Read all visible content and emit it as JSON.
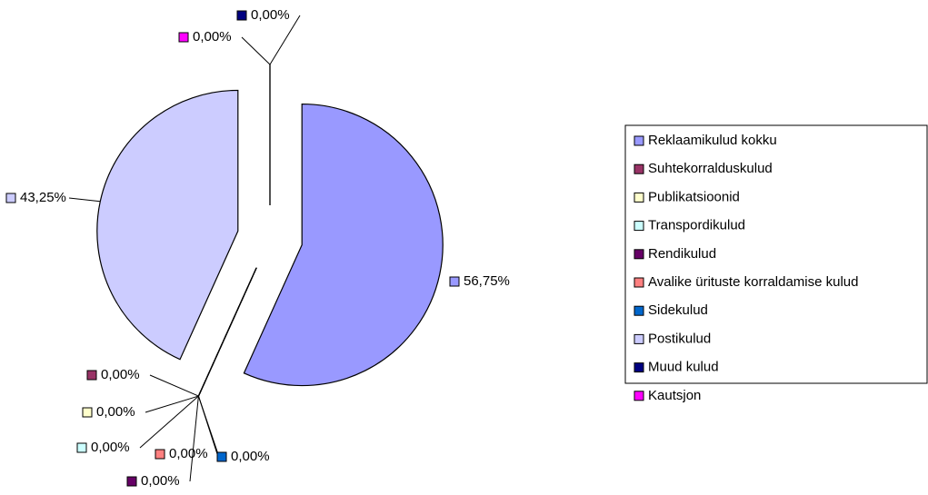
{
  "chart_data": {
    "type": "pie",
    "categories": [
      "Reklaamikulud kokku",
      "Suhtekorralduskulud",
      "Publikatsioonid",
      "Transpordikulud",
      "Rendikulud",
      "Avalike ürituste korraldamise kulud",
      "Sidekulud",
      "Postikulud",
      "Muud kulud",
      "Kautsjon"
    ],
    "values": [
      56.75,
      0,
      0,
      0,
      0,
      0,
      0,
      43.25,
      0,
      0
    ],
    "value_labels": [
      "56,75%",
      "0,00%",
      "0,00%",
      "0,00%",
      "0,00%",
      "0,00%",
      "0,00%",
      "43,25%",
      "0,00%",
      "0,00%"
    ],
    "colors": [
      "#9999ff",
      "#993366",
      "#ffffcc",
      "#ccffff",
      "#660066",
      "#ff8080",
      "#0066cc",
      "#ccccff",
      "#000080",
      "#ff00ff"
    ],
    "legend": "right"
  }
}
